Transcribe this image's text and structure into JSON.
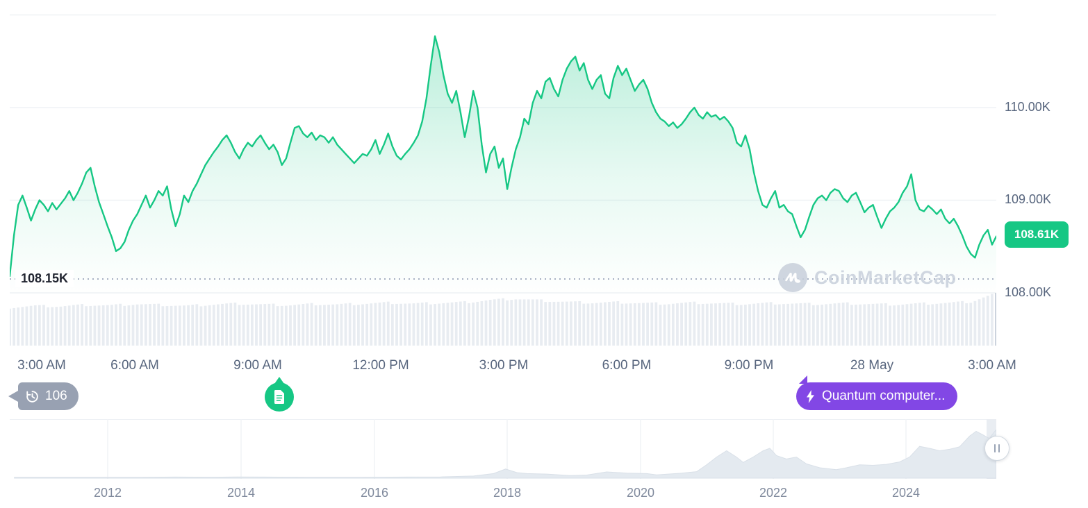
{
  "colors": {
    "accent_green": "#16c784",
    "accent_purple": "#8247e5",
    "badge_gray": "#98a1b2",
    "axis_text": "#58667e",
    "grid": "#eff2f5",
    "dotted_line": "#a6b0c3",
    "volume_bar": "#e8ecf1",
    "volume_bar_last": "#c9d0da",
    "mini_area_fill": "#e4eaf0",
    "mini_area_stroke": "#d9e0e8",
    "watermark_gray": "#c8d0db",
    "dark_label": "#222531"
  },
  "y_axis": {
    "labels": [
      "110.00K",
      "109.00K",
      "108.00K"
    ],
    "prices": [
      110,
      109,
      108
    ]
  },
  "price_tag": {
    "label": "108.61K"
  },
  "open_line": {
    "label": "108.15K",
    "price": 108.15
  },
  "x_axis": {
    "labels": [
      "3:00 AM",
      "6:00 AM",
      "9:00 AM",
      "12:00 PM",
      "3:00 PM",
      "6:00 PM",
      "9:00 PM",
      "28 May",
      "3:00 AM"
    ]
  },
  "watermark": {
    "text": "CoinMarketCap"
  },
  "badges": {
    "history": {
      "label": "106",
      "icon": "history-clock"
    },
    "news": {
      "icon": "document"
    },
    "event": {
      "label": "Quantum computer...",
      "icon": "lightning"
    }
  },
  "mini_chart": {
    "year_labels": [
      "2012",
      "2014",
      "2016",
      "2018",
      "2020",
      "2022",
      "2024"
    ]
  },
  "chart_data": [
    {
      "type": "area",
      "title": "Price (intraday, thousands USD)",
      "x_ticks": [
        "3:00 AM",
        "6:00 AM",
        "9:00 AM",
        "12:00 PM",
        "3:00 PM",
        "6:00 PM",
        "9:00 PM",
        "28 May",
        "3:00 AM"
      ],
      "y_ticks": [
        "110.00K",
        "109.00K",
        "108.00K"
      ],
      "ylim": [
        107.9,
        111.0
      ],
      "grid": true,
      "open_price": 108.15,
      "last_price": 108.61,
      "line_color": "#16c784",
      "values": [
        108.18,
        108.62,
        108.95,
        109.05,
        108.92,
        108.78,
        108.9,
        109.0,
        108.95,
        108.88,
        108.97,
        108.9,
        108.96,
        109.02,
        109.1,
        109.0,
        109.08,
        109.18,
        109.3,
        109.35,
        109.15,
        108.98,
        108.85,
        108.72,
        108.6,
        108.45,
        108.48,
        108.55,
        108.68,
        108.78,
        108.85,
        108.95,
        109.05,
        108.92,
        109.0,
        109.1,
        109.05,
        109.15,
        108.9,
        108.72,
        108.85,
        109.05,
        108.98,
        109.1,
        109.18,
        109.28,
        109.38,
        109.45,
        109.52,
        109.58,
        109.65,
        109.7,
        109.62,
        109.52,
        109.45,
        109.55,
        109.62,
        109.58,
        109.65,
        109.7,
        109.62,
        109.55,
        109.6,
        109.52,
        109.38,
        109.45,
        109.62,
        109.78,
        109.8,
        109.72,
        109.68,
        109.73,
        109.65,
        109.7,
        109.68,
        109.62,
        109.68,
        109.6,
        109.55,
        109.5,
        109.45,
        109.4,
        109.45,
        109.5,
        109.48,
        109.55,
        109.65,
        109.5,
        109.6,
        109.72,
        109.58,
        109.48,
        109.44,
        109.5,
        109.55,
        109.62,
        109.7,
        109.85,
        110.1,
        110.45,
        110.77,
        110.6,
        110.35,
        110.15,
        110.05,
        110.18,
        109.95,
        109.68,
        109.9,
        110.18,
        110.0,
        109.6,
        109.3,
        109.5,
        109.58,
        109.35,
        109.45,
        109.12,
        109.35,
        109.55,
        109.68,
        109.88,
        109.82,
        110.05,
        110.18,
        110.1,
        110.28,
        110.32,
        110.2,
        110.12,
        110.3,
        110.42,
        110.5,
        110.55,
        110.4,
        110.48,
        110.3,
        110.2,
        110.3,
        110.35,
        110.15,
        110.1,
        110.32,
        110.45,
        110.35,
        110.42,
        110.3,
        110.18,
        110.25,
        110.3,
        110.2,
        110.05,
        109.95,
        109.88,
        109.85,
        109.8,
        109.84,
        109.78,
        109.82,
        109.88,
        109.95,
        110.0,
        109.92,
        109.88,
        109.95,
        109.9,
        109.92,
        109.87,
        109.9,
        109.85,
        109.78,
        109.62,
        109.58,
        109.7,
        109.55,
        109.3,
        109.1,
        108.95,
        108.92,
        109.02,
        109.1,
        108.92,
        108.95,
        108.88,
        108.85,
        108.72,
        108.6,
        108.68,
        108.82,
        108.95,
        109.02,
        109.05,
        109.0,
        109.08,
        109.12,
        109.1,
        109.02,
        108.98,
        109.05,
        109.08,
        108.98,
        108.87,
        108.92,
        108.95,
        108.82,
        108.7,
        108.8,
        108.88,
        108.92,
        108.98,
        109.08,
        109.15,
        109.28,
        109.0,
        108.9,
        108.88,
        108.94,
        108.9,
        108.85,
        108.9,
        108.8,
        108.75,
        108.8,
        108.72,
        108.62,
        108.5,
        108.42,
        108.38,
        108.52,
        108.62,
        108.68,
        108.52,
        108.61
      ],
      "volume_profile": [
        0.35,
        0.42,
        0.4,
        0.46,
        0.44,
        0.5,
        0.46,
        0.42,
        0.48,
        0.52,
        0.48,
        0.45,
        0.5,
        0.48,
        0.52,
        0.56,
        0.52,
        0.55,
        0.58,
        0.68,
        0.74,
        0.66,
        0.6,
        0.56,
        0.58,
        0.54,
        0.52,
        0.56,
        0.53,
        0.5,
        0.54,
        0.52,
        0.5,
        0.53,
        0.5,
        0.48,
        0.52,
        0.55,
        0.6,
        1.0
      ]
    },
    {
      "type": "area",
      "title": "All-time overview (range selector, normalized height)",
      "x_ticks": [
        "2012",
        "2014",
        "2016",
        "2018",
        "2020",
        "2022",
        "2024"
      ],
      "points": [
        [
          2010.6,
          0.004
        ],
        [
          2011.5,
          0.004
        ],
        [
          2012.0,
          0.005
        ],
        [
          2012.5,
          0.004
        ],
        [
          2013.0,
          0.008
        ],
        [
          2013.6,
          0.006
        ],
        [
          2013.95,
          0.012
        ],
        [
          2014.3,
          0.008
        ],
        [
          2015.0,
          0.004
        ],
        [
          2015.8,
          0.005
        ],
        [
          2016.5,
          0.008
        ],
        [
          2017.0,
          0.012
        ],
        [
          2017.5,
          0.03
        ],
        [
          2017.8,
          0.08
        ],
        [
          2017.98,
          0.175
        ],
        [
          2018.15,
          0.1
        ],
        [
          2018.3,
          0.08
        ],
        [
          2018.6,
          0.07
        ],
        [
          2018.95,
          0.04
        ],
        [
          2019.2,
          0.05
        ],
        [
          2019.5,
          0.115
        ],
        [
          2019.8,
          0.09
        ],
        [
          2020.1,
          0.08
        ],
        [
          2020.25,
          0.055
        ],
        [
          2020.6,
          0.085
        ],
        [
          2020.85,
          0.12
        ],
        [
          2021.0,
          0.26
        ],
        [
          2021.15,
          0.42
        ],
        [
          2021.3,
          0.55
        ],
        [
          2021.45,
          0.42
        ],
        [
          2021.55,
          0.31
        ],
        [
          2021.7,
          0.42
        ],
        [
          2021.85,
          0.55
        ],
        [
          2021.95,
          0.6
        ],
        [
          2022.05,
          0.45
        ],
        [
          2022.2,
          0.38
        ],
        [
          2022.35,
          0.42
        ],
        [
          2022.5,
          0.28
        ],
        [
          2022.7,
          0.2
        ],
        [
          2022.95,
          0.16
        ],
        [
          2023.1,
          0.2
        ],
        [
          2023.3,
          0.26
        ],
        [
          2023.5,
          0.25
        ],
        [
          2023.7,
          0.27
        ],
        [
          2023.9,
          0.32
        ],
        [
          2024.05,
          0.42
        ],
        [
          2024.2,
          0.64
        ],
        [
          2024.35,
          0.6
        ],
        [
          2024.5,
          0.55
        ],
        [
          2024.65,
          0.58
        ],
        [
          2024.8,
          0.63
        ],
        [
          2024.95,
          0.85
        ],
        [
          2025.05,
          0.95
        ],
        [
          2025.15,
          0.88
        ],
        [
          2025.25,
          0.8
        ],
        [
          2025.3,
          0.9
        ],
        [
          2025.35,
          0.98
        ]
      ]
    }
  ]
}
